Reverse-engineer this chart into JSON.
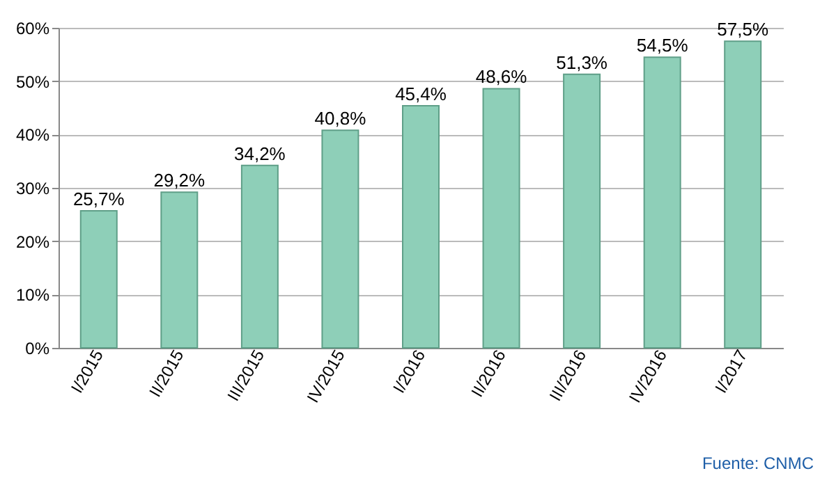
{
  "chart_data": {
    "type": "bar",
    "categories": [
      "I/2015",
      "II/2015",
      "III/2015",
      "IV/2015",
      "I/2016",
      "II/2016",
      "III/2016",
      "IV/2016",
      "I/2017"
    ],
    "values": [
      25.7,
      29.2,
      34.2,
      40.8,
      45.4,
      48.6,
      51.3,
      54.5,
      57.5
    ],
    "value_labels": [
      "25,7%",
      "29,2%",
      "34,2%",
      "40,8%",
      "45,4%",
      "48,6%",
      "51,3%",
      "54,5%",
      "57,5%"
    ],
    "color": "#8ecfb8",
    "ylim": [
      0,
      60
    ],
    "yticks": [
      {
        "value": 0,
        "label": "0%"
      },
      {
        "value": 10,
        "label": "10%"
      },
      {
        "value": 20,
        "label": "20%"
      },
      {
        "value": 30,
        "label": "30%"
      },
      {
        "value": 40,
        "label": "40%"
      },
      {
        "value": 50,
        "label": "50%"
      },
      {
        "value": 60,
        "label": "60%"
      }
    ],
    "grid": true,
    "annotations": [
      "Fuente: CNMC"
    ]
  }
}
